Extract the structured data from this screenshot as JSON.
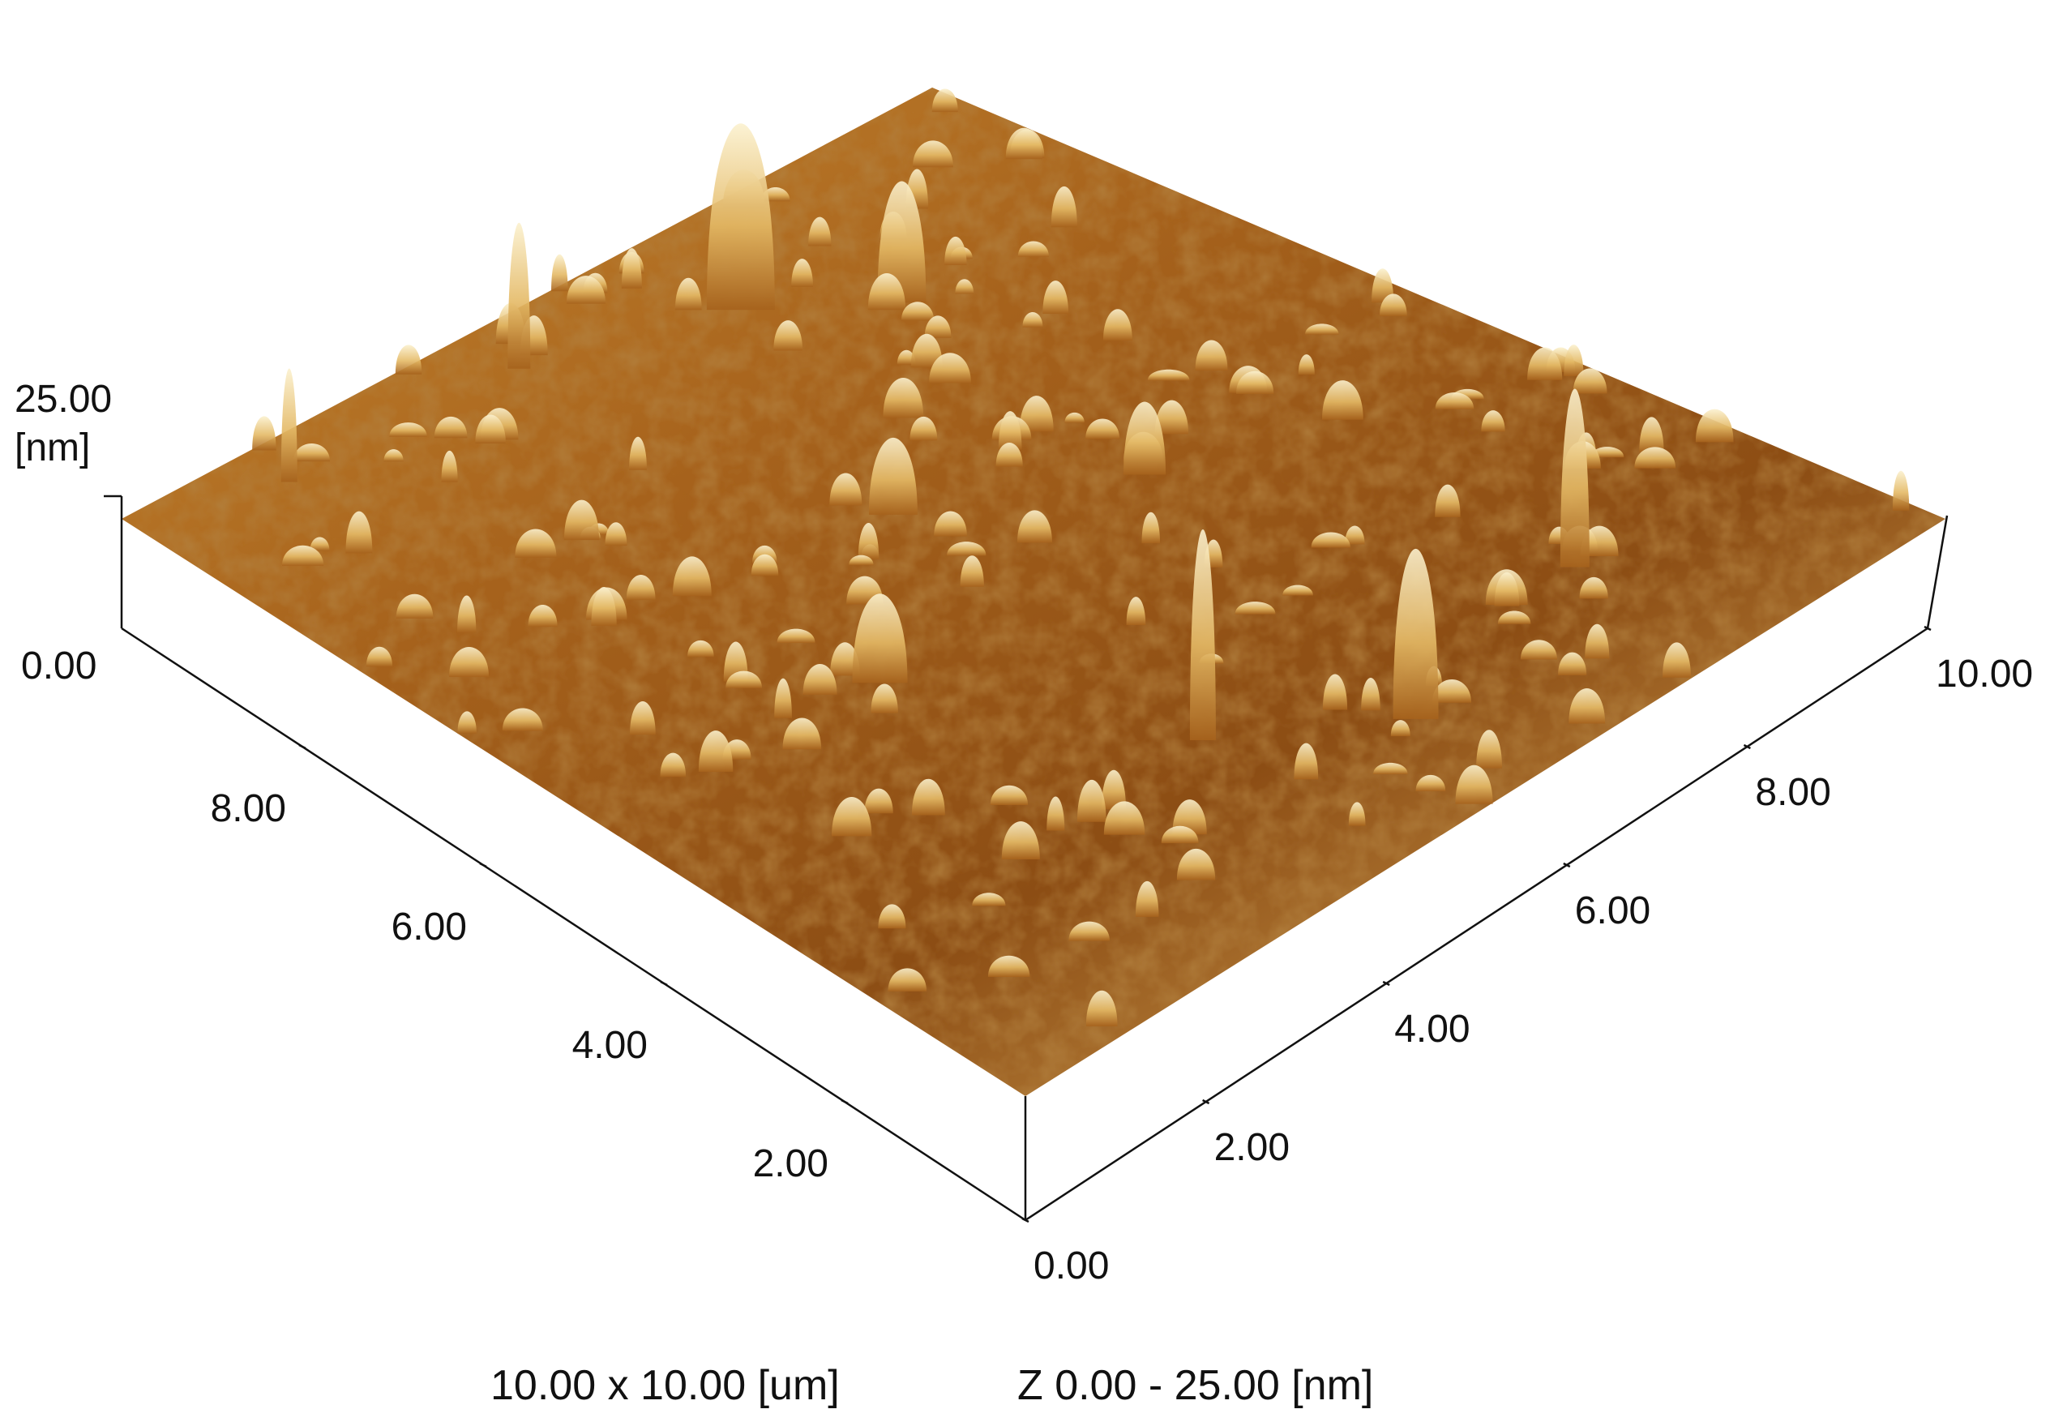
{
  "chart_data": {
    "type": "surface3d",
    "title": "",
    "x_axis": {
      "label": "",
      "unit": "um",
      "range": [
        0,
        10
      ],
      "ticks": [
        "2.00",
        "4.00",
        "6.00",
        "8.00"
      ]
    },
    "y_axis": {
      "label": "",
      "unit": "um",
      "range": [
        0,
        10
      ],
      "ticks": [
        "0.00",
        "2.00",
        "4.00",
        "6.00",
        "8.00",
        "10.00"
      ]
    },
    "z_axis": {
      "unit_label": "[nm]",
      "range": [
        0,
        25
      ],
      "ticks": [
        "0.00",
        "25.00"
      ]
    },
    "colormap": [
      "#5a2a08",
      "#7a3e0e",
      "#a6621c",
      "#c98a32",
      "#e4b965",
      "#f3dd9f",
      "#fbf1cf"
    ],
    "caption": {
      "scan_size": "10.00 x 10.00 [um]",
      "z_range": "Z  0.00  -  25.00 [nm]"
    }
  }
}
